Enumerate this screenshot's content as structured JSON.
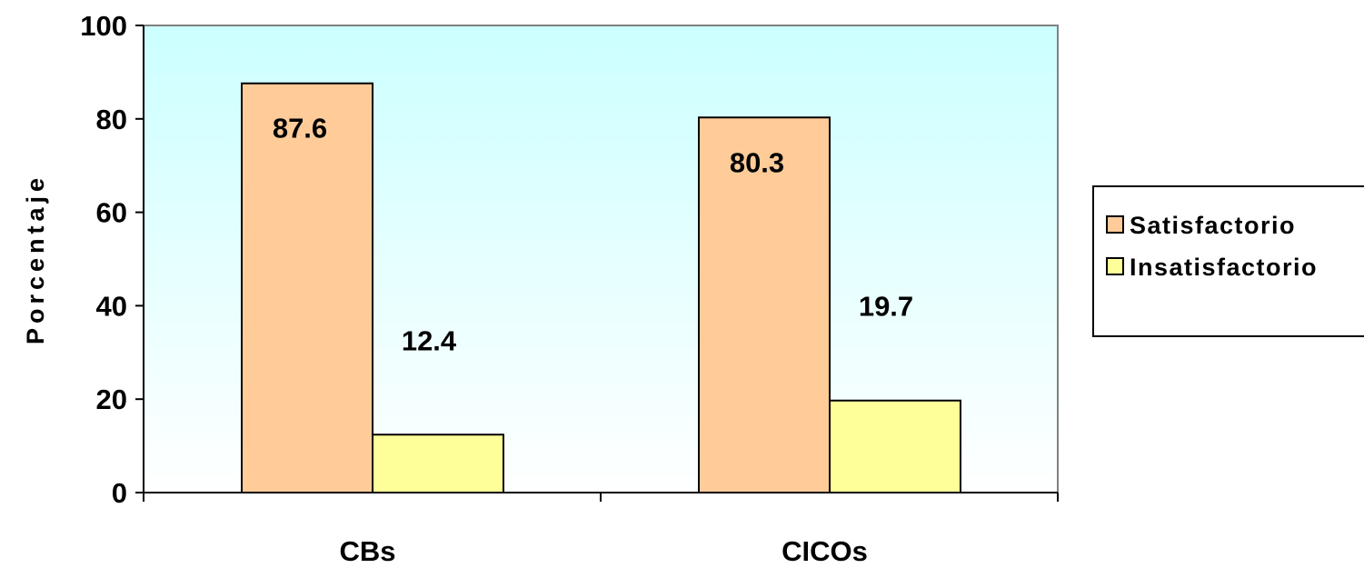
{
  "chart_data": {
    "type": "bar",
    "categories": [
      "CBs",
      "CICOs"
    ],
    "series": [
      {
        "name": "Satisfactorio",
        "values": [
          87.6,
          80.3
        ],
        "labels": [
          "87.6",
          "80.3"
        ],
        "color": "#FFCC99"
      },
      {
        "name": "Insatisfactorio",
        "values": [
          12.4,
          19.7
        ],
        "labels": [
          "12.4",
          "19.7"
        ],
        "color": "#FFFF99"
      }
    ],
    "ylabel": "Porcentaje",
    "xlabel": "",
    "ylim": [
      0,
      100
    ],
    "yticks": [
      0,
      20,
      40,
      60,
      80,
      100
    ],
    "ytick_labels": [
      "0",
      "20",
      "40",
      "60",
      "80",
      "100"
    ],
    "grid": false,
    "legend_position": "right",
    "plot_background": [
      "#CCFFFF",
      "#FFFFFF"
    ],
    "plot_border_color": "#808080"
  }
}
